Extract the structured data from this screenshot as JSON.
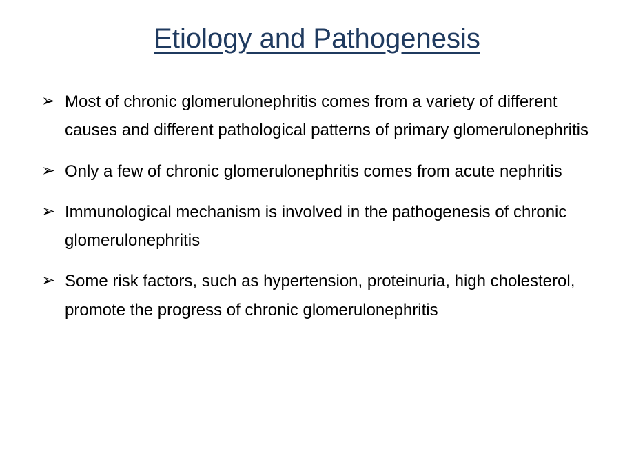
{
  "slide": {
    "title": "Etiology and Pathogenesis",
    "title_color": "#1f3a5f",
    "title_fontsize": 40,
    "background_color": "#ffffff",
    "body_fontsize": 24,
    "body_color": "#000000",
    "bullet_marker": "➢",
    "bullets": [
      "Most of chronic glomerulonephritis comes from a variety of different causes and different pathological patterns of primary glomerulonephritis",
      "Only a few of chronic glomerulonephritis comes from acute nephritis",
      "Immunological mechanism is involved in the pathogenesis of chronic glomerulonephritis",
      "Some risk factors, such as hypertension, proteinuria, high cholesterol,  promote the progress of chronic glomerulonephritis"
    ]
  }
}
